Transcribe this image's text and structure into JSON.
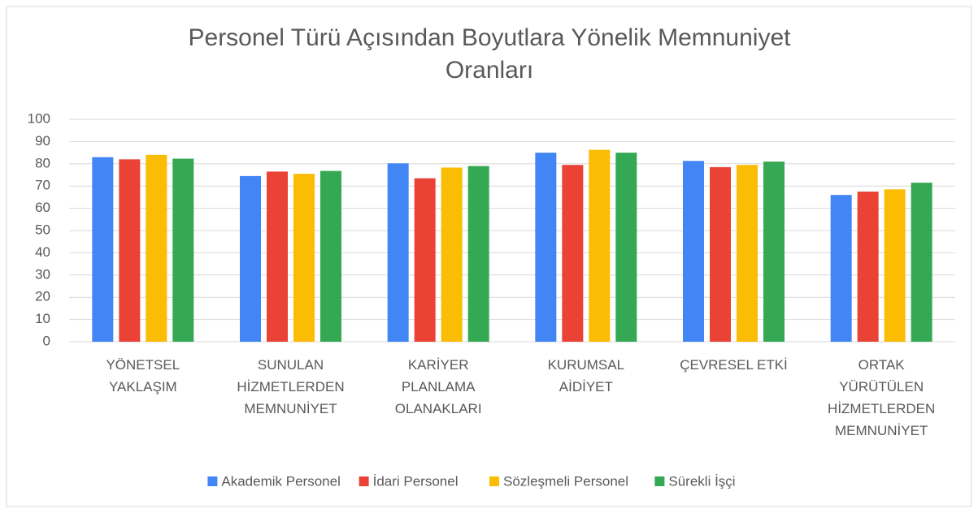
{
  "chart_data": {
    "type": "bar",
    "title": "Personel Türü Açısından Boyutlara Yönelik Memnuniyet Oranları",
    "categories": [
      "YÖNETSEL YAKLAŞIM",
      "SUNULAN HİZMETLERDEN MEMNUNİYET",
      "KARİYER PLANLAMA OLANAKLARI",
      "KURUMSAL AİDİYET",
      "ÇEVRESEL ETKİ",
      "ORTAK YÜRÜTÜLEN HİZMETLERDEN MEMNUNİYET"
    ],
    "series": [
      {
        "name": "Akademik Personel",
        "color": "#4285f4",
        "values": [
          83,
          74.5,
          80.2,
          85,
          81.3,
          66
        ]
      },
      {
        "name": "İdari Personel",
        "color": "#ea4335",
        "values": [
          82,
          76.5,
          73.5,
          79.5,
          78.5,
          67.5
        ]
      },
      {
        "name": "Sözleşmeli Personel",
        "color": "#fbbc04",
        "values": [
          84,
          75.5,
          78.3,
          86.3,
          79.5,
          68.5
        ]
      },
      {
        "name": "Sürekli İşçi",
        "color": "#34a853",
        "values": [
          82.3,
          76.8,
          79,
          85,
          81,
          71.5
        ]
      }
    ],
    "ylim": [
      0,
      100
    ],
    "yticks": [
      0,
      10,
      20,
      30,
      40,
      50,
      60,
      70,
      80,
      90,
      100
    ],
    "grid": true,
    "legend": "bottom"
  }
}
